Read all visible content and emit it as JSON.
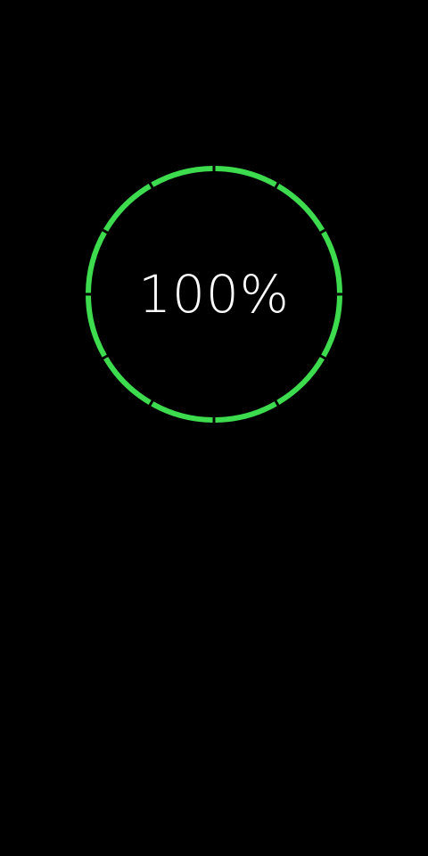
{
  "battery": {
    "level_label": "100%",
    "level_fraction": 1.0,
    "segment_count": 12
  },
  "colors": {
    "background": "#000000",
    "ring_fill": "#3ddc4f",
    "text": "#ffffff"
  }
}
